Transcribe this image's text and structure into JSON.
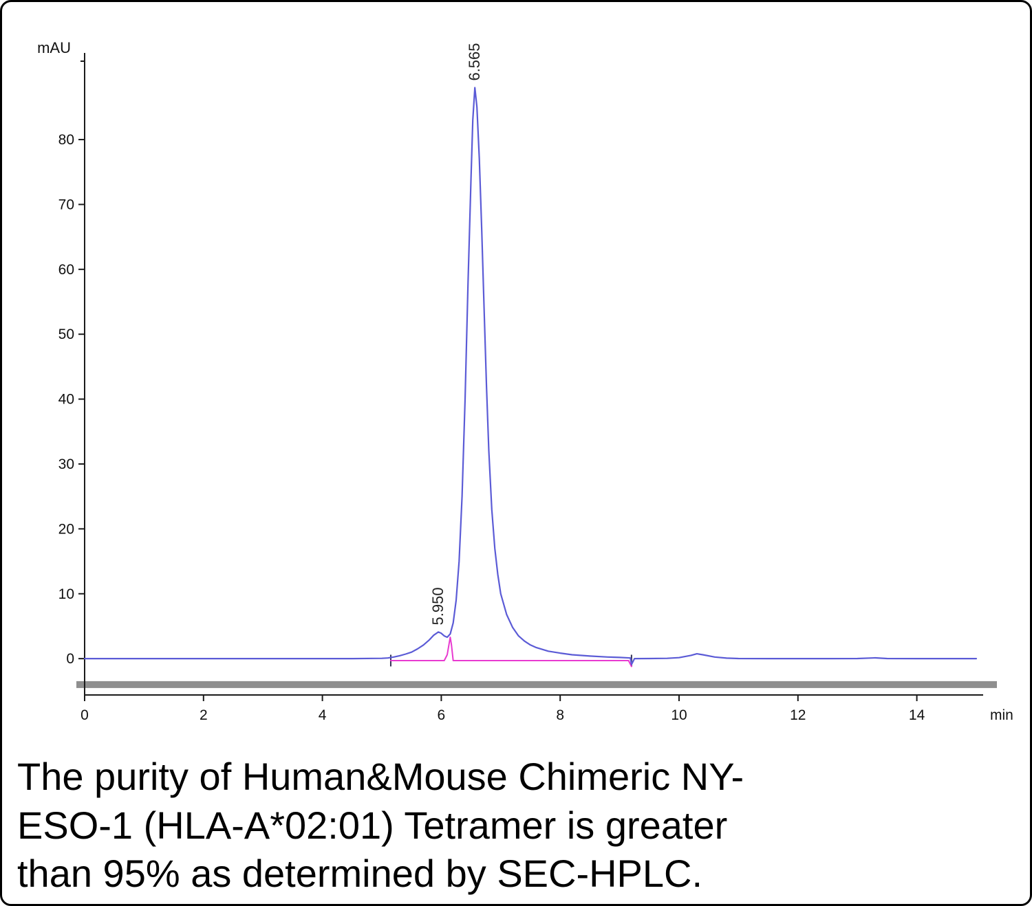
{
  "caption": {
    "lines": [
      "The purity of Human&Mouse Chimeric NY-",
      "ESO-1 (HLA-A*02:01) Tetramer is greater",
      "than 95% as determined by SEC-HPLC."
    ]
  },
  "chart_data": {
    "type": "line",
    "title": "",
    "xlabel": "min",
    "ylabel": "mAU",
    "xlim": [
      0,
      15
    ],
    "ylim": [
      -5.6,
      92.4
    ],
    "x_ticks": [
      0,
      2,
      4,
      6,
      8,
      10,
      12,
      14
    ],
    "y_ticks": [
      0,
      10,
      20,
      30,
      40,
      50,
      60,
      70,
      80
    ],
    "grid": false,
    "legend": "none",
    "axis_color": "#1a1a1a",
    "tick_label_color": "#111111",
    "gray_band_color": "#8f8f8f",
    "peak_label_color": "#222222",
    "integration_marks": [
      {
        "x": 5.15,
        "color": "#333355"
      },
      {
        "x": 9.2,
        "color": "#333355"
      }
    ],
    "peak_labels": [
      {
        "label": "5.950",
        "x": 5.95,
        "y": 4.1
      },
      {
        "label": "6.565",
        "x": 6.565,
        "y": 88
      }
    ],
    "series": [
      {
        "name": "baseline-fit",
        "color": "#e83ad0",
        "width": 2,
        "points": [
          [
            5.15,
            -0.3
          ],
          [
            5.5,
            -0.3
          ],
          [
            5.8,
            -0.3
          ],
          [
            6.0,
            -0.3
          ],
          [
            6.05,
            -0.3
          ],
          [
            6.1,
            0.6
          ],
          [
            6.13,
            2.2
          ],
          [
            6.15,
            3.3
          ],
          [
            6.17,
            2.2
          ],
          [
            6.2,
            -0.3
          ],
          [
            6.5,
            -0.3
          ],
          [
            7.0,
            -0.3
          ],
          [
            7.5,
            -0.3
          ],
          [
            8.0,
            -0.3
          ],
          [
            8.5,
            -0.3
          ],
          [
            9.0,
            -0.3
          ],
          [
            9.15,
            -0.3
          ],
          [
            9.2,
            -1.2
          ]
        ]
      },
      {
        "name": "sample-trace",
        "color": "#5b5bd6",
        "width": 2.2,
        "points": [
          [
            0,
            0
          ],
          [
            0.5,
            0
          ],
          [
            1,
            0
          ],
          [
            1.5,
            0
          ],
          [
            2,
            0
          ],
          [
            2.5,
            0
          ],
          [
            3,
            0
          ],
          [
            3.5,
            0
          ],
          [
            4,
            0
          ],
          [
            4.5,
            0
          ],
          [
            5.0,
            0.05
          ],
          [
            5.1,
            0.1
          ],
          [
            5.2,
            0.25
          ],
          [
            5.3,
            0.45
          ],
          [
            5.4,
            0.7
          ],
          [
            5.5,
            1.0
          ],
          [
            5.6,
            1.5
          ],
          [
            5.7,
            2.1
          ],
          [
            5.8,
            2.9
          ],
          [
            5.87,
            3.6
          ],
          [
            5.95,
            4.1
          ],
          [
            6.0,
            3.9
          ],
          [
            6.05,
            3.5
          ],
          [
            6.1,
            3.3
          ],
          [
            6.15,
            3.8
          ],
          [
            6.2,
            5.5
          ],
          [
            6.25,
            9
          ],
          [
            6.3,
            15
          ],
          [
            6.35,
            25
          ],
          [
            6.4,
            40
          ],
          [
            6.45,
            58
          ],
          [
            6.5,
            74
          ],
          [
            6.53,
            83
          ],
          [
            6.565,
            88
          ],
          [
            6.6,
            85
          ],
          [
            6.64,
            77
          ],
          [
            6.68,
            66
          ],
          [
            6.72,
            54
          ],
          [
            6.76,
            42
          ],
          [
            6.8,
            32
          ],
          [
            6.85,
            23
          ],
          [
            6.9,
            17
          ],
          [
            6.95,
            13
          ],
          [
            7.0,
            10
          ],
          [
            7.1,
            6.8
          ],
          [
            7.2,
            4.8
          ],
          [
            7.3,
            3.5
          ],
          [
            7.4,
            2.7
          ],
          [
            7.5,
            2.1
          ],
          [
            7.6,
            1.7
          ],
          [
            7.8,
            1.15
          ],
          [
            8.0,
            0.85
          ],
          [
            8.2,
            0.6
          ],
          [
            8.5,
            0.4
          ],
          [
            8.8,
            0.25
          ],
          [
            9.0,
            0.18
          ],
          [
            9.18,
            0.1
          ],
          [
            9.2,
            -0.9
          ],
          [
            9.25,
            0.0
          ],
          [
            9.5,
            0.02
          ],
          [
            9.8,
            0.05
          ],
          [
            10.0,
            0.15
          ],
          [
            10.2,
            0.5
          ],
          [
            10.3,
            0.75
          ],
          [
            10.4,
            0.6
          ],
          [
            10.6,
            0.25
          ],
          [
            10.8,
            0.08
          ],
          [
            11.0,
            0.02
          ],
          [
            11.5,
            0
          ],
          [
            12,
            0
          ],
          [
            12.5,
            0
          ],
          [
            13,
            0.02
          ],
          [
            13.3,
            0.12
          ],
          [
            13.5,
            0.02
          ],
          [
            14,
            0
          ],
          [
            14.5,
            0
          ],
          [
            15,
            0
          ]
        ]
      }
    ]
  }
}
